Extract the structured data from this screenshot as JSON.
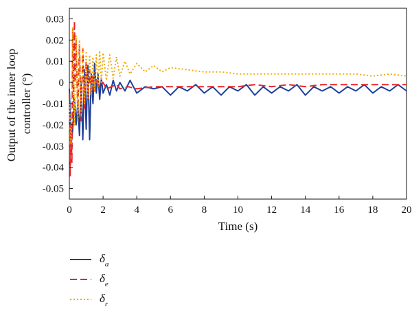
{
  "chart_data": {
    "type": "line",
    "xlabel": "Time (s)",
    "ylabel": [
      "Output of the inner loop",
      "controller (°)"
    ],
    "xlim": [
      0,
      20
    ],
    "ylim": [
      -0.055,
      0.035
    ],
    "x_ticks": [
      0,
      2,
      4,
      6,
      8,
      10,
      12,
      14,
      16,
      18,
      20
    ],
    "y_ticks": [
      -0.05,
      -0.04,
      -0.03,
      -0.02,
      -0.01,
      0,
      0.01,
      0.02,
      0.03
    ],
    "x_tick_labels": [
      "0",
      "2",
      "4",
      "6",
      "8",
      "10",
      "12",
      "14",
      "16",
      "18",
      "20"
    ],
    "y_tick_labels": [
      "-0.05",
      "-0.04",
      "-0.03",
      "-0.02",
      "-0.01",
      "0",
      "0.01",
      "0.02",
      "0.03"
    ],
    "grid": false,
    "legend_position": "bottom-left",
    "series": [
      {
        "name": "δ_a",
        "symbol": "δ",
        "subscript": "a",
        "color": "#1f3f99",
        "style": "solid",
        "x": [
          0,
          0.1,
          0.2,
          0.3,
          0.4,
          0.5,
          0.6,
          0.7,
          0.8,
          0.9,
          1.0,
          1.1,
          1.2,
          1.3,
          1.4,
          1.5,
          1.6,
          1.7,
          1.8,
          1.9,
          2.0,
          2.2,
          2.4,
          2.6,
          2.8,
          3.0,
          3.3,
          3.6,
          4.0,
          4.5,
          5.0,
          5.5,
          6.0,
          6.5,
          7.0,
          7.5,
          8.0,
          8.5,
          9.0,
          9.5,
          10.0,
          10.5,
          11.0,
          11.5,
          12.0,
          12.5,
          13.0,
          13.5,
          14.0,
          14.5,
          15.0,
          15.5,
          16.0,
          16.5,
          17.0,
          17.5,
          18.0,
          18.5,
          19.0,
          19.5,
          20.0
        ],
        "y": [
          -0.003,
          -0.03,
          -0.022,
          -0.008,
          -0.02,
          -0.01,
          -0.025,
          0.0,
          -0.027,
          0.006,
          -0.022,
          0.008,
          -0.027,
          0.004,
          -0.01,
          0.009,
          -0.005,
          0.004,
          -0.008,
          0.002,
          -0.005,
          -0.001,
          -0.006,
          0.001,
          -0.004,
          0.0,
          -0.004,
          0.001,
          -0.005,
          -0.002,
          -0.003,
          -0.002,
          -0.006,
          -0.002,
          -0.004,
          -0.001,
          -0.005,
          -0.002,
          -0.006,
          -0.002,
          -0.004,
          -0.001,
          -0.006,
          -0.002,
          -0.005,
          -0.002,
          -0.004,
          -0.001,
          -0.006,
          -0.002,
          -0.004,
          -0.002,
          -0.005,
          -0.002,
          -0.004,
          -0.001,
          -0.005,
          -0.002,
          -0.004,
          -0.001,
          -0.004
        ]
      },
      {
        "name": "δ_e",
        "symbol": "δ",
        "subscript": "e",
        "color": "#e8262a",
        "style": "dashed",
        "x": [
          0,
          0.05,
          0.1,
          0.15,
          0.2,
          0.25,
          0.3,
          0.35,
          0.4,
          0.5,
          0.6,
          0.7,
          0.8,
          0.9,
          1.0,
          1.1,
          1.2,
          1.3,
          1.4,
          1.5,
          1.6,
          1.8,
          2.0,
          2.2,
          2.5,
          2.8,
          3.0,
          3.5,
          4.0,
          5.0,
          6.0,
          7.0,
          8.0,
          9.0,
          10.0,
          11.0,
          12.0,
          13.0,
          14.0,
          15.0,
          16.0,
          17.0,
          18.0,
          19.0,
          20.0
        ],
        "y": [
          -0.005,
          -0.044,
          -0.02,
          -0.038,
          0.025,
          -0.01,
          0.029,
          0.0,
          0.02,
          -0.015,
          0.018,
          -0.018,
          0.016,
          -0.012,
          0.01,
          -0.008,
          0.006,
          -0.006,
          0.004,
          -0.004,
          0.002,
          -0.002,
          0.0,
          -0.003,
          -0.002,
          -0.001,
          -0.003,
          -0.002,
          -0.003,
          -0.002,
          -0.002,
          -0.002,
          -0.002,
          -0.002,
          -0.002,
          -0.001,
          -0.002,
          -0.001,
          -0.002,
          -0.001,
          -0.001,
          -0.001,
          -0.001,
          -0.001,
          -0.001
        ]
      },
      {
        "name": "δ_r",
        "symbol": "δ",
        "subscript": "r",
        "color": "#f5a800",
        "style": "dotted",
        "x": [
          0,
          0.1,
          0.2,
          0.3,
          0.4,
          0.5,
          0.6,
          0.7,
          0.8,
          0.9,
          1.0,
          1.1,
          1.2,
          1.3,
          1.4,
          1.5,
          1.6,
          1.7,
          1.8,
          1.9,
          2.0,
          2.2,
          2.4,
          2.6,
          2.8,
          3.0,
          3.3,
          3.6,
          4.0,
          4.5,
          5.0,
          5.5,
          6.0,
          7.0,
          8.0,
          9.0,
          10.0,
          11.0,
          12.0,
          13.0,
          14.0,
          15.0,
          16.0,
          17.0,
          18.0,
          19.0,
          20.0
        ],
        "y": [
          -0.01,
          -0.03,
          0.026,
          -0.02,
          0.022,
          -0.018,
          0.02,
          -0.015,
          0.016,
          -0.01,
          0.014,
          -0.008,
          0.013,
          -0.006,
          0.012,
          -0.004,
          0.013,
          -0.002,
          0.015,
          0.0,
          0.014,
          0.001,
          0.013,
          0.002,
          0.012,
          0.003,
          0.01,
          0.004,
          0.009,
          0.005,
          0.008,
          0.005,
          0.007,
          0.006,
          0.005,
          0.005,
          0.004,
          0.004,
          0.004,
          0.004,
          0.004,
          0.004,
          0.004,
          0.004,
          0.003,
          0.004,
          0.003
        ]
      }
    ]
  }
}
